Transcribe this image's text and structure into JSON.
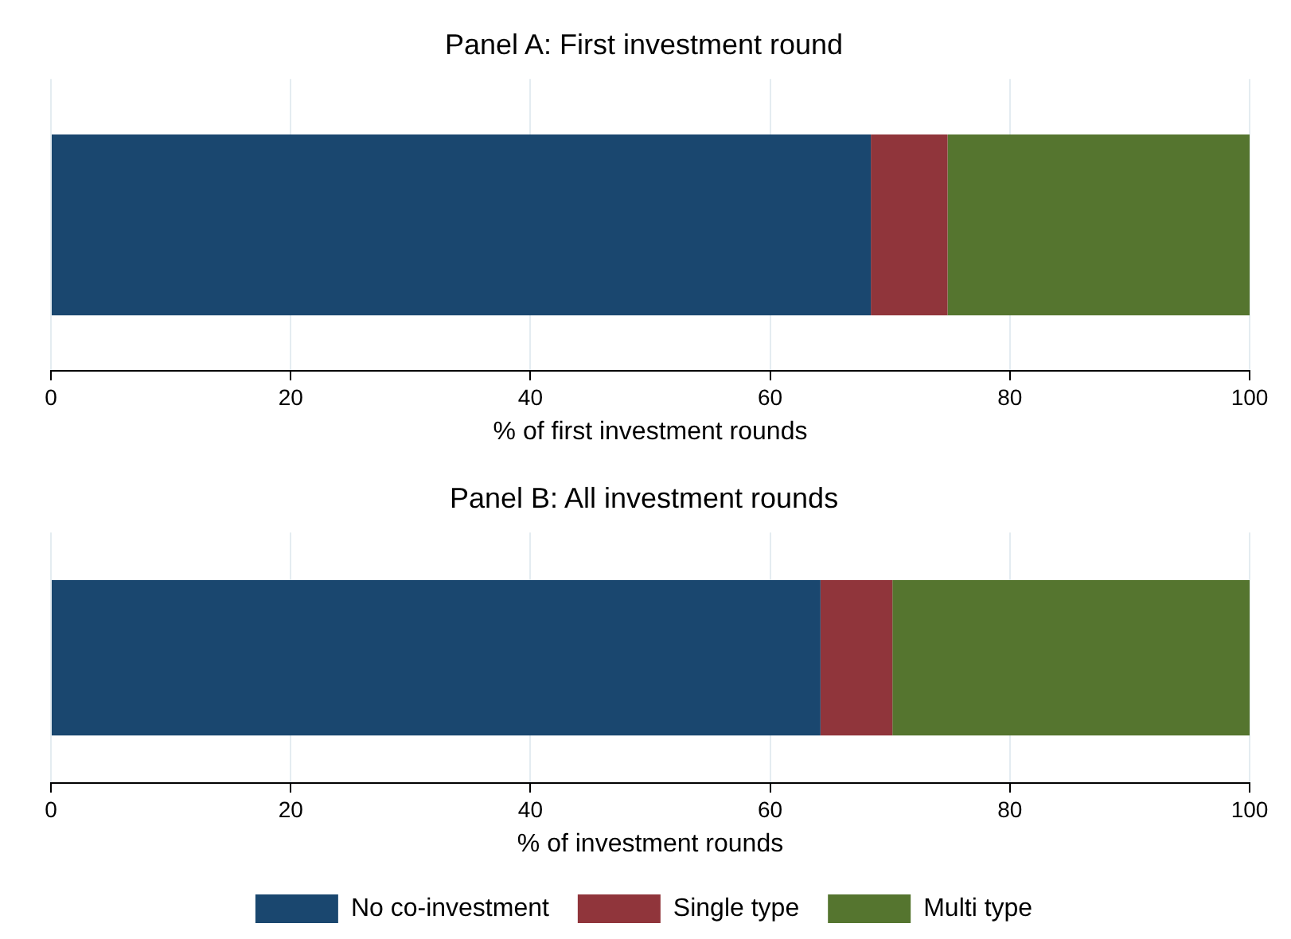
{
  "chart_data": [
    {
      "type": "bar",
      "title": "Panel A: First investment round",
      "orientation": "horizontal",
      "stacked": true,
      "categories": [
        null
      ],
      "xlabel": "% of first investment rounds",
      "xlim": [
        0,
        100
      ],
      "xticks": [
        0,
        20,
        40,
        60,
        80,
        100
      ],
      "grid": "x",
      "legend": false,
      "tick_labels": "x",
      "series": [
        {
          "color": "#1a476f",
          "values": [
            68.4
          ]
        },
        {
          "color": "#90353b",
          "values": [
            6.4
          ]
        },
        {
          "color": "#55752f",
          "values": [
            25.2
          ]
        }
      ]
    },
    {
      "type": "bar",
      "title": "Panel B: All investment rounds",
      "orientation": "horizontal",
      "stacked": true,
      "categories": [
        null
      ],
      "xlabel": "% of investment rounds",
      "xlim": [
        0,
        100
      ],
      "xticks": [
        0,
        20,
        40,
        60,
        80,
        100
      ],
      "grid": "x",
      "legend": "bottom",
      "tick_labels": "x",
      "series": [
        {
          "name": "No co-investment",
          "color": "#1a476f",
          "values": [
            64.2
          ]
        },
        {
          "name": "Single type",
          "color": "#90353b",
          "values": [
            6.0
          ]
        },
        {
          "name": "Multi type",
          "color": "#55752f",
          "values": [
            29.8
          ]
        }
      ]
    }
  ]
}
